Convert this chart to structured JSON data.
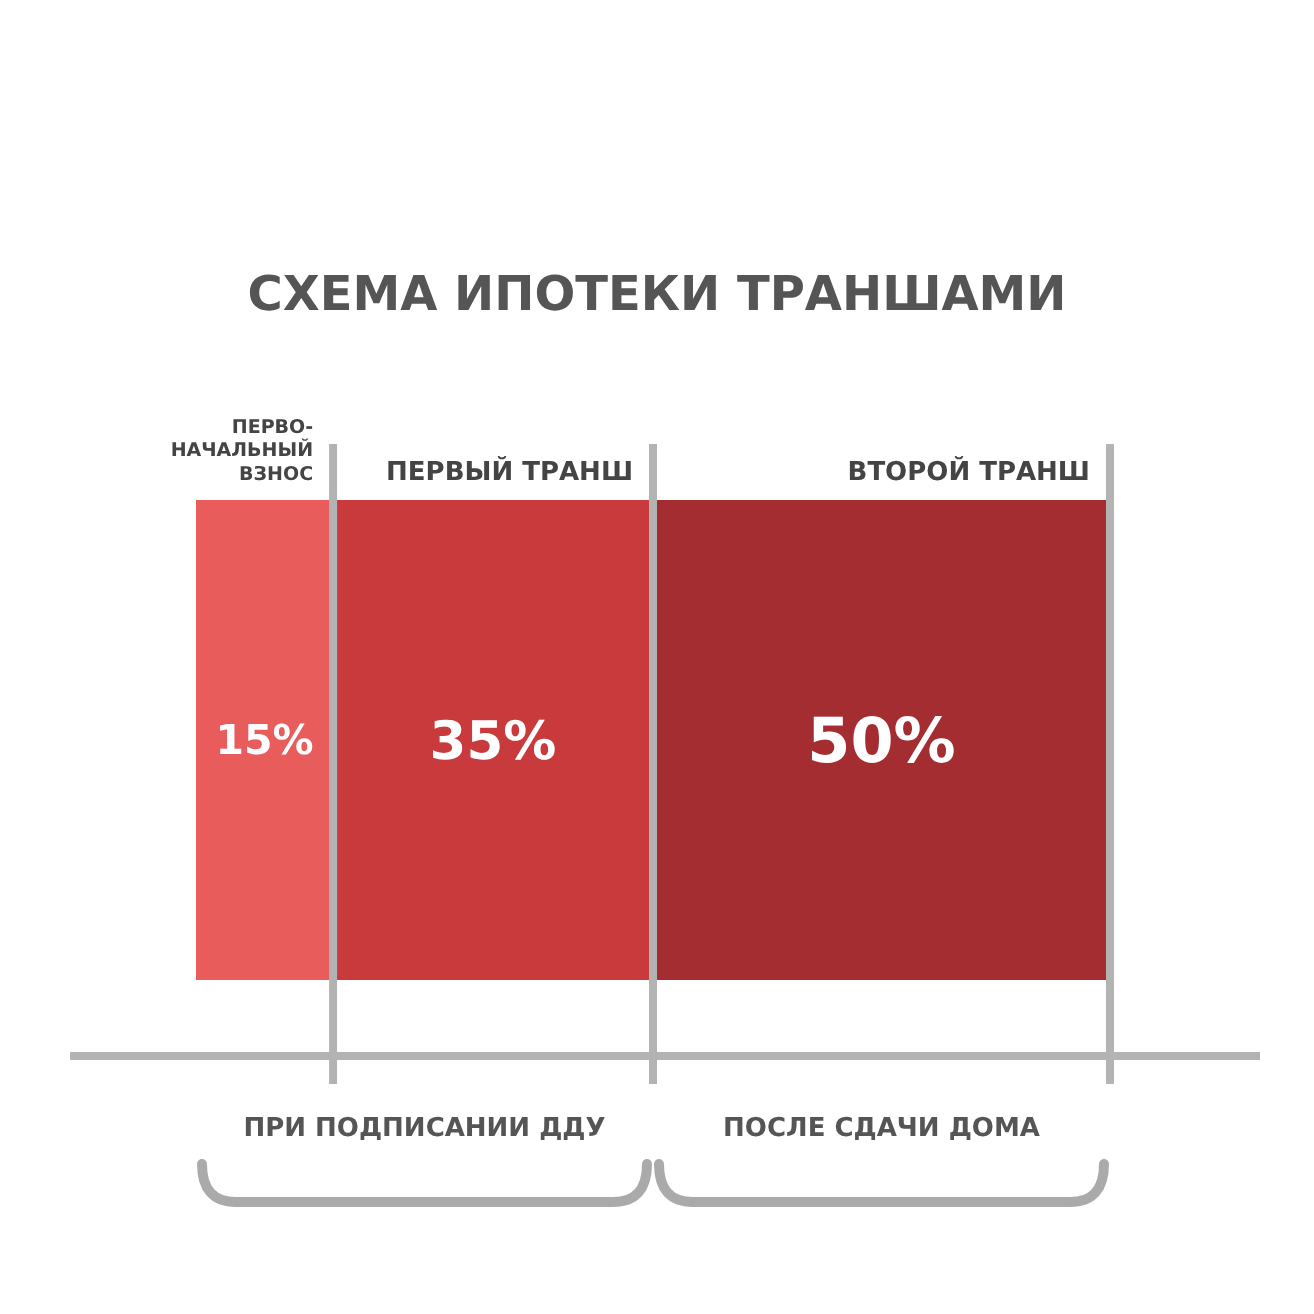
{
  "chart_data": {
    "type": "bar",
    "orientation": "horizontal",
    "stacked": true,
    "title": "СХЕМА ИПОТЕКИ ТРАНШАМИ",
    "categories": [
      null
    ],
    "series": [
      {
        "name": "ПЕРВО-НАЧАЛЬНЫЙ ВЗНОС",
        "color": "#e85c5c",
        "values": [
          15
        ],
        "value_labels": [
          "15%"
        ]
      },
      {
        "name": "ПЕРВЫЙ ТРАНШ",
        "color": "#c93a3c",
        "values": [
          35
        ],
        "value_labels": [
          "35%"
        ]
      },
      {
        "name": "ВТОРОЙ ТРАНШ",
        "color": "#a32d30",
        "values": [
          50
        ],
        "value_labels": [
          "50%"
        ]
      }
    ],
    "ref_lines": [
      {
        "axis": "x",
        "value": 15,
        "color": "#b3b3b3"
      },
      {
        "axis": "x",
        "value": 50,
        "color": "#b3b3b3"
      },
      {
        "axis": "x",
        "value": 100,
        "color": "#b3b3b3"
      }
    ],
    "annotations": [
      "ПРИ ПОДПИСАНИИ ДДУ",
      "ПОСЛЕ СДАЧИ ДОМА"
    ]
  }
}
